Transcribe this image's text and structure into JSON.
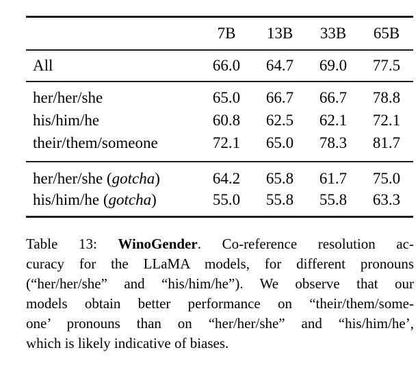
{
  "meta": {
    "colors": {
      "background": "#ffffff",
      "text": "#000000",
      "rule": "#1c1c1c"
    }
  },
  "table": {
    "columns": [
      "7B",
      "13B",
      "33B",
      "65B"
    ],
    "sections": [
      {
        "rows": [
          {
            "label_pre": "All",
            "label_it": "",
            "label_post": "",
            "values": [
              "66.0",
              "64.7",
              "69.0",
              "77.5"
            ]
          }
        ]
      },
      {
        "rows": [
          {
            "label_pre": "her/her/she",
            "label_it": "",
            "label_post": "",
            "values": [
              "65.0",
              "66.7",
              "66.7",
              "78.8"
            ]
          },
          {
            "label_pre": "his/him/he",
            "label_it": "",
            "label_post": "",
            "values": [
              "60.8",
              "62.5",
              "62.1",
              "72.1"
            ]
          },
          {
            "label_pre": "their/them/someone",
            "label_it": "",
            "label_post": "",
            "values": [
              "72.1",
              "65.0",
              "78.3",
              "81.7"
            ]
          }
        ]
      },
      {
        "rows": [
          {
            "label_pre": "her/her/she (",
            "label_it": "gotcha",
            "label_post": ")",
            "values": [
              "64.2",
              "65.8",
              "61.7",
              "75.0"
            ]
          },
          {
            "label_pre": "his/him/he (",
            "label_it": "gotcha",
            "label_post": ")",
            "values": [
              "55.0",
              "55.8",
              "55.8",
              "63.3"
            ]
          }
        ]
      }
    ]
  },
  "caption": {
    "lines": [
      {
        "pre": "Table 13: ",
        "bold": "WinoGender",
        "post": ". Co-reference resolution ac-"
      },
      {
        "text": "curacy for the LLaMA models, for different pronouns"
      },
      {
        "text": "(“her/her/she” and “his/him/he”). We observe that our"
      },
      {
        "text": "models obtain better performance on “their/them/some-"
      },
      {
        "text": "one’ pronouns than on “her/her/she” and “his/him/he’,"
      },
      {
        "text": "which is likely indicative of biases."
      }
    ]
  }
}
